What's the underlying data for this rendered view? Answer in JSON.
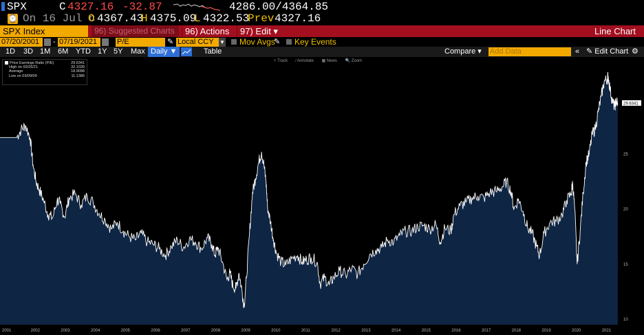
{
  "quote": {
    "ticker": "SPX",
    "close_label": "C",
    "last": "4327.16",
    "change": "-32.87",
    "range": "4286.00/4364.85",
    "date": "On 16 Jul c",
    "open_label": "O",
    "open": "4367.43",
    "high_label": "H",
    "high": "4375.09",
    "low_label": "L",
    "low": "4322.53",
    "prev_label": "Prev",
    "prev": "4327.16"
  },
  "command_bar": {
    "security": "SPX Index",
    "suggested": "96) Suggested Charts",
    "actions": "96) Actions ▾",
    "edit": "97) Edit ▾",
    "title": "Line Chart"
  },
  "field_bar": {
    "start_date": "07/20/2001",
    "end_date": "07/19/2021",
    "field": "P/E",
    "currency": "Local CCY",
    "mov_avgs": "Mov Avgs",
    "key_events": "Key Events"
  },
  "period_bar": {
    "periods": [
      "1D",
      "3D",
      "1M",
      "6M",
      "YTD",
      "1Y",
      "5Y",
      "Max"
    ],
    "frequency": "Daily ▼",
    "table": "Table",
    "compare": "Compare ▾",
    "add_data_placeholder": "Add Data",
    "edit_chart": "Edit Chart"
  },
  "chart_tools": [
    "+ Track",
    "∕ Annotate",
    "▦ News",
    "🔍 Zoom"
  ],
  "colors": {
    "accent_amber": "#f2a900",
    "command_red": "#a30f1f",
    "negative": "#ff4a4a",
    "area_fill": "#0f2544",
    "line": "#ffffff"
  },
  "chart_data": {
    "type": "area",
    "legend": {
      "series": "Price Earnings Ratio (P/E)",
      "series_value": "29.6341",
      "high_label": "High on 03/26/21",
      "high_value": "32.1039",
      "avg_label": "Average",
      "avg_value": "18.9098",
      "low_label": "Low on 03/09/09",
      "low_value": "11.1386"
    },
    "last_value_label": "29.6341",
    "xlim": [
      2001.0,
      2021.6
    ],
    "ylim": [
      9.5,
      33.5
    ],
    "y_ticks": [
      10,
      15,
      20,
      25
    ],
    "x_ticks": [
      "2001",
      "2002",
      "2003",
      "2004",
      "2005",
      "2006",
      "2007",
      "2008",
      "2009",
      "2010",
      "2011",
      "2012",
      "2013",
      "2014",
      "2015",
      "2016",
      "2017",
      "2018",
      "2019",
      "2020",
      "2021"
    ],
    "points": [
      [
        2001.55,
        26.5
      ],
      [
        2001.7,
        27.2
      ],
      [
        2001.85,
        27.6
      ],
      [
        2002.0,
        26.5
      ],
      [
        2002.1,
        24.0
      ],
      [
        2002.2,
        22.5
      ],
      [
        2002.3,
        21.8
      ],
      [
        2002.45,
        20.8
      ],
      [
        2002.6,
        19.5
      ],
      [
        2002.75,
        19.2
      ],
      [
        2002.9,
        20.8
      ],
      [
        2003.0,
        20.5
      ],
      [
        2003.15,
        19.3
      ],
      [
        2003.3,
        21.0
      ],
      [
        2003.5,
        21.4
      ],
      [
        2003.7,
        20.4
      ],
      [
        2003.9,
        21.2
      ],
      [
        2004.1,
        20.6
      ],
      [
        2004.3,
        19.6
      ],
      [
        2004.5,
        19.0
      ],
      [
        2004.7,
        18.2
      ],
      [
        2004.9,
        18.8
      ],
      [
        2005.1,
        18.0
      ],
      [
        2005.3,
        17.5
      ],
      [
        2005.5,
        17.2
      ],
      [
        2005.7,
        17.8
      ],
      [
        2005.9,
        17.0
      ],
      [
        2006.1,
        16.8
      ],
      [
        2006.3,
        16.4
      ],
      [
        2006.5,
        15.8
      ],
      [
        2006.7,
        16.6
      ],
      [
        2006.9,
        17.2
      ],
      [
        2007.1,
        16.5
      ],
      [
        2007.3,
        17.3
      ],
      [
        2007.5,
        17.0
      ],
      [
        2007.7,
        16.4
      ],
      [
        2007.9,
        17.4
      ],
      [
        2008.05,
        16.8
      ],
      [
        2008.15,
        15.8
      ],
      [
        2008.25,
        16.5
      ],
      [
        2008.4,
        15.2
      ],
      [
        2008.55,
        13.6
      ],
      [
        2008.65,
        14.2
      ],
      [
        2008.75,
        13.0
      ],
      [
        2008.85,
        12.8
      ],
      [
        2008.95,
        14.2
      ],
      [
        2009.05,
        12.6
      ],
      [
        2009.12,
        11.2
      ],
      [
        2009.2,
        13.8
      ],
      [
        2009.3,
        17.8
      ],
      [
        2009.4,
        21.5
      ],
      [
        2009.5,
        22.8
      ],
      [
        2009.6,
        24.2
      ],
      [
        2009.7,
        25.2
      ],
      [
        2009.78,
        24.0
      ],
      [
        2009.85,
        22.5
      ],
      [
        2009.9,
        20.2
      ],
      [
        2010.0,
        18.8
      ],
      [
        2010.1,
        17.2
      ],
      [
        2010.2,
        16.0
      ],
      [
        2010.35,
        15.2
      ],
      [
        2010.5,
        14.9
      ],
      [
        2010.7,
        15.5
      ],
      [
        2010.9,
        15.8
      ],
      [
        2011.05,
        15.2
      ],
      [
        2011.2,
        15.4
      ],
      [
        2011.35,
        15.6
      ],
      [
        2011.55,
        15.2
      ],
      [
        2011.65,
        13.2
      ],
      [
        2011.8,
        13.8
      ],
      [
        2011.95,
        13.1
      ],
      [
        2012.1,
        13.8
      ],
      [
        2012.3,
        14.4
      ],
      [
        2012.5,
        14.0
      ],
      [
        2012.7,
        14.6
      ],
      [
        2012.9,
        14.1
      ],
      [
        2013.1,
        15.0
      ],
      [
        2013.3,
        15.9
      ],
      [
        2013.5,
        16.3
      ],
      [
        2013.7,
        16.5
      ],
      [
        2013.9,
        17.2
      ],
      [
        2014.1,
        17.0
      ],
      [
        2014.3,
        17.6
      ],
      [
        2014.5,
        18.0
      ],
      [
        2014.7,
        18.0
      ],
      [
        2014.9,
        18.4
      ],
      [
        2015.1,
        18.5
      ],
      [
        2015.3,
        18.2
      ],
      [
        2015.5,
        18.6
      ],
      [
        2015.65,
        17.0
      ],
      [
        2015.8,
        18.3
      ],
      [
        2016.0,
        18.0
      ],
      [
        2016.1,
        19.5
      ],
      [
        2016.3,
        20.3
      ],
      [
        2016.5,
        20.6
      ],
      [
        2016.7,
        21.0
      ],
      [
        2016.9,
        21.2
      ],
      [
        2017.1,
        21.0
      ],
      [
        2017.3,
        21.5
      ],
      [
        2017.5,
        21.6
      ],
      [
        2017.7,
        22.0
      ],
      [
        2017.85,
        22.5
      ],
      [
        2018.0,
        21.6
      ],
      [
        2018.1,
        20.0
      ],
      [
        2018.25,
        20.9
      ],
      [
        2018.4,
        19.8
      ],
      [
        2018.55,
        18.3
      ],
      [
        2018.7,
        17.8
      ],
      [
        2018.85,
        16.6
      ],
      [
        2018.95,
        15.8
      ],
      [
        2019.1,
        17.8
      ],
      [
        2019.3,
        18.8
      ],
      [
        2019.5,
        18.9
      ],
      [
        2019.7,
        19.5
      ],
      [
        2019.85,
        20.8
      ],
      [
        2020.0,
        21.4
      ],
      [
        2020.05,
        22.4
      ],
      [
        2020.12,
        20.0
      ],
      [
        2020.2,
        15.0
      ],
      [
        2020.3,
        18.0
      ],
      [
        2020.4,
        21.5
      ],
      [
        2020.5,
        24.3
      ],
      [
        2020.6,
        25.0
      ],
      [
        2020.7,
        26.8
      ],
      [
        2020.8,
        27.3
      ],
      [
        2020.9,
        28.8
      ],
      [
        2021.0,
        30.2
      ],
      [
        2021.1,
        31.6
      ],
      [
        2021.2,
        31.8
      ],
      [
        2021.23,
        32.1
      ],
      [
        2021.3,
        30.8
      ],
      [
        2021.38,
        29.7
      ],
      [
        2021.45,
        29.3
      ],
      [
        2021.5,
        29.8
      ],
      [
        2021.55,
        29.63
      ]
    ]
  }
}
